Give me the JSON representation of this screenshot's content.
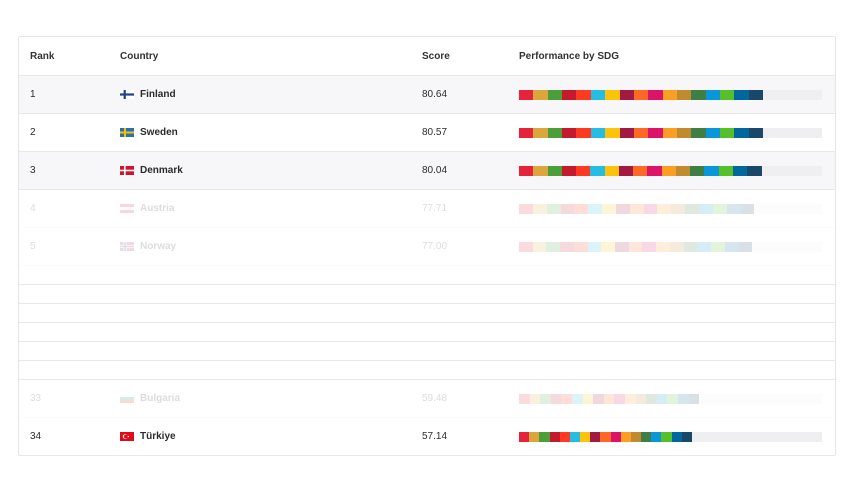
{
  "headers": {
    "rank": "Rank",
    "country": "Country",
    "score": "Score",
    "performance": "Performance by SDG"
  },
  "sdg_colors": [
    "#e5243b",
    "#dda63a",
    "#4c9f38",
    "#c5192d",
    "#ff3a21",
    "#26bde2",
    "#fcc30b",
    "#a21942",
    "#fd6925",
    "#dd1367",
    "#fd9d24",
    "#bf8b2e",
    "#3f7e44",
    "#0a97d9",
    "#56c02b",
    "#00689d",
    "#19486a"
  ],
  "rows": [
    {
      "rank": "1",
      "country": "Finland",
      "flag": "finland-flag",
      "score": "80.64",
      "score_value": 80.64,
      "state": "highlight"
    },
    {
      "rank": "2",
      "country": "Sweden",
      "flag": "sweden-flag",
      "score": "80.57",
      "score_value": 80.57,
      "state": "normal"
    },
    {
      "rank": "3",
      "country": "Denmark",
      "flag": "denmark-flag",
      "score": "80.04",
      "score_value": 80.04,
      "state": "highlight"
    },
    {
      "rank": "4",
      "country": "Austria",
      "flag": "austria-flag",
      "score": "77.71",
      "score_value": 77.71,
      "state": "fade"
    },
    {
      "rank": "5",
      "country": "Norway",
      "flag": "norway-flag",
      "score": "77.00",
      "score_value": 77.0,
      "state": "fade"
    },
    {
      "rank": "33",
      "country": "Bulgaria",
      "flag": "bulgaria-flag",
      "score": "59.48",
      "score_value": 59.48,
      "state": "fade"
    },
    {
      "rank": "34",
      "country": "Türkiye",
      "flag": "turkiye-flag",
      "score": "57.14",
      "score_value": 57.14,
      "state": "normal"
    }
  ]
}
